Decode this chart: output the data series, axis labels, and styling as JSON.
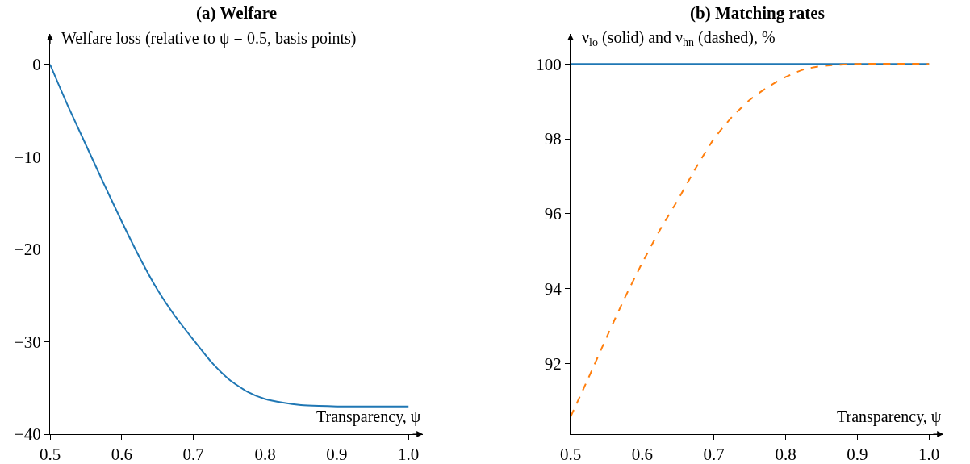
{
  "chart_data": [
    {
      "type": "line",
      "title": "(a) Welfare",
      "xlabel": "Transparency, ψ",
      "ylabel": "Welfare loss (relative to ψ = 0.5, basis points)",
      "xlim": [
        0.5,
        1.02
      ],
      "xticks": [
        {
          "value": 0.5,
          "label": "0.5"
        },
        {
          "value": 0.6,
          "label": "0.6"
        },
        {
          "value": 0.7,
          "label": "0.7"
        },
        {
          "value": 0.8,
          "label": "0.8"
        },
        {
          "value": 0.9,
          "label": "0.9"
        },
        {
          "value": 1.0,
          "label": "1.0"
        }
      ],
      "ylim": [
        -40,
        3.3
      ],
      "yticks": [
        {
          "value": -40,
          "label": "−40"
        },
        {
          "value": -30,
          "label": "−30"
        },
        {
          "value": -20,
          "label": "−20"
        },
        {
          "value": -10,
          "label": "−10"
        },
        0
      ],
      "series": [
        {
          "color": "#1f77b4",
          "line_style": "solid",
          "x": [
            0.5,
            0.525,
            0.55,
            0.575,
            0.6,
            0.625,
            0.65,
            0.675,
            0.7,
            0.725,
            0.75,
            0.775,
            0.8,
            0.825,
            0.85,
            0.875,
            0.9,
            1.0
          ],
          "values": [
            0,
            -4.5,
            -8.7,
            -12.9,
            -17.0,
            -20.9,
            -24.4,
            -27.3,
            -29.8,
            -32.2,
            -34.1,
            -35.4,
            -36.2,
            -36.6,
            -36.85,
            -36.95,
            -37,
            -37
          ]
        }
      ]
    },
    {
      "type": "line",
      "title": "(b) Matching rates",
      "xlabel": "Transparency, ψ",
      "ylabel": "ν$_{lo}$ (solid) and ν$_{hn}$ (dashed), %",
      "xlim": [
        0.5,
        1.02
      ],
      "xticks": [
        {
          "value": 0.5,
          "label": "0.5"
        },
        {
          "value": 0.6,
          "label": "0.6"
        },
        {
          "value": 0.7,
          "label": "0.7"
        },
        {
          "value": 0.8,
          "label": "0.8"
        },
        {
          "value": 0.9,
          "label": "0.9"
        },
        {
          "value": 1.0,
          "label": "1.0"
        }
      ],
      "ylim": [
        90.12,
        100.8
      ],
      "yticks": [
        92,
        94,
        96,
        98,
        100
      ],
      "series": [
        {
          "color": "#1f77b4",
          "line_style": "solid",
          "x": [
            0.5,
            1.0
          ],
          "values": [
            100,
            100
          ]
        },
        {
          "color": "#ff7f0e",
          "line_style": "dashed",
          "x": [
            0.5,
            0.525,
            0.55,
            0.575,
            0.6,
            0.625,
            0.65,
            0.675,
            0.7,
            0.725,
            0.75,
            0.775,
            0.8,
            0.825,
            0.85,
            0.9,
            1.0
          ],
          "values": [
            90.58,
            91.62,
            92.69,
            93.73,
            94.69,
            95.58,
            96.38,
            97.23,
            98.0,
            98.58,
            99.04,
            99.38,
            99.65,
            99.85,
            99.94,
            100,
            100
          ]
        }
      ]
    }
  ]
}
